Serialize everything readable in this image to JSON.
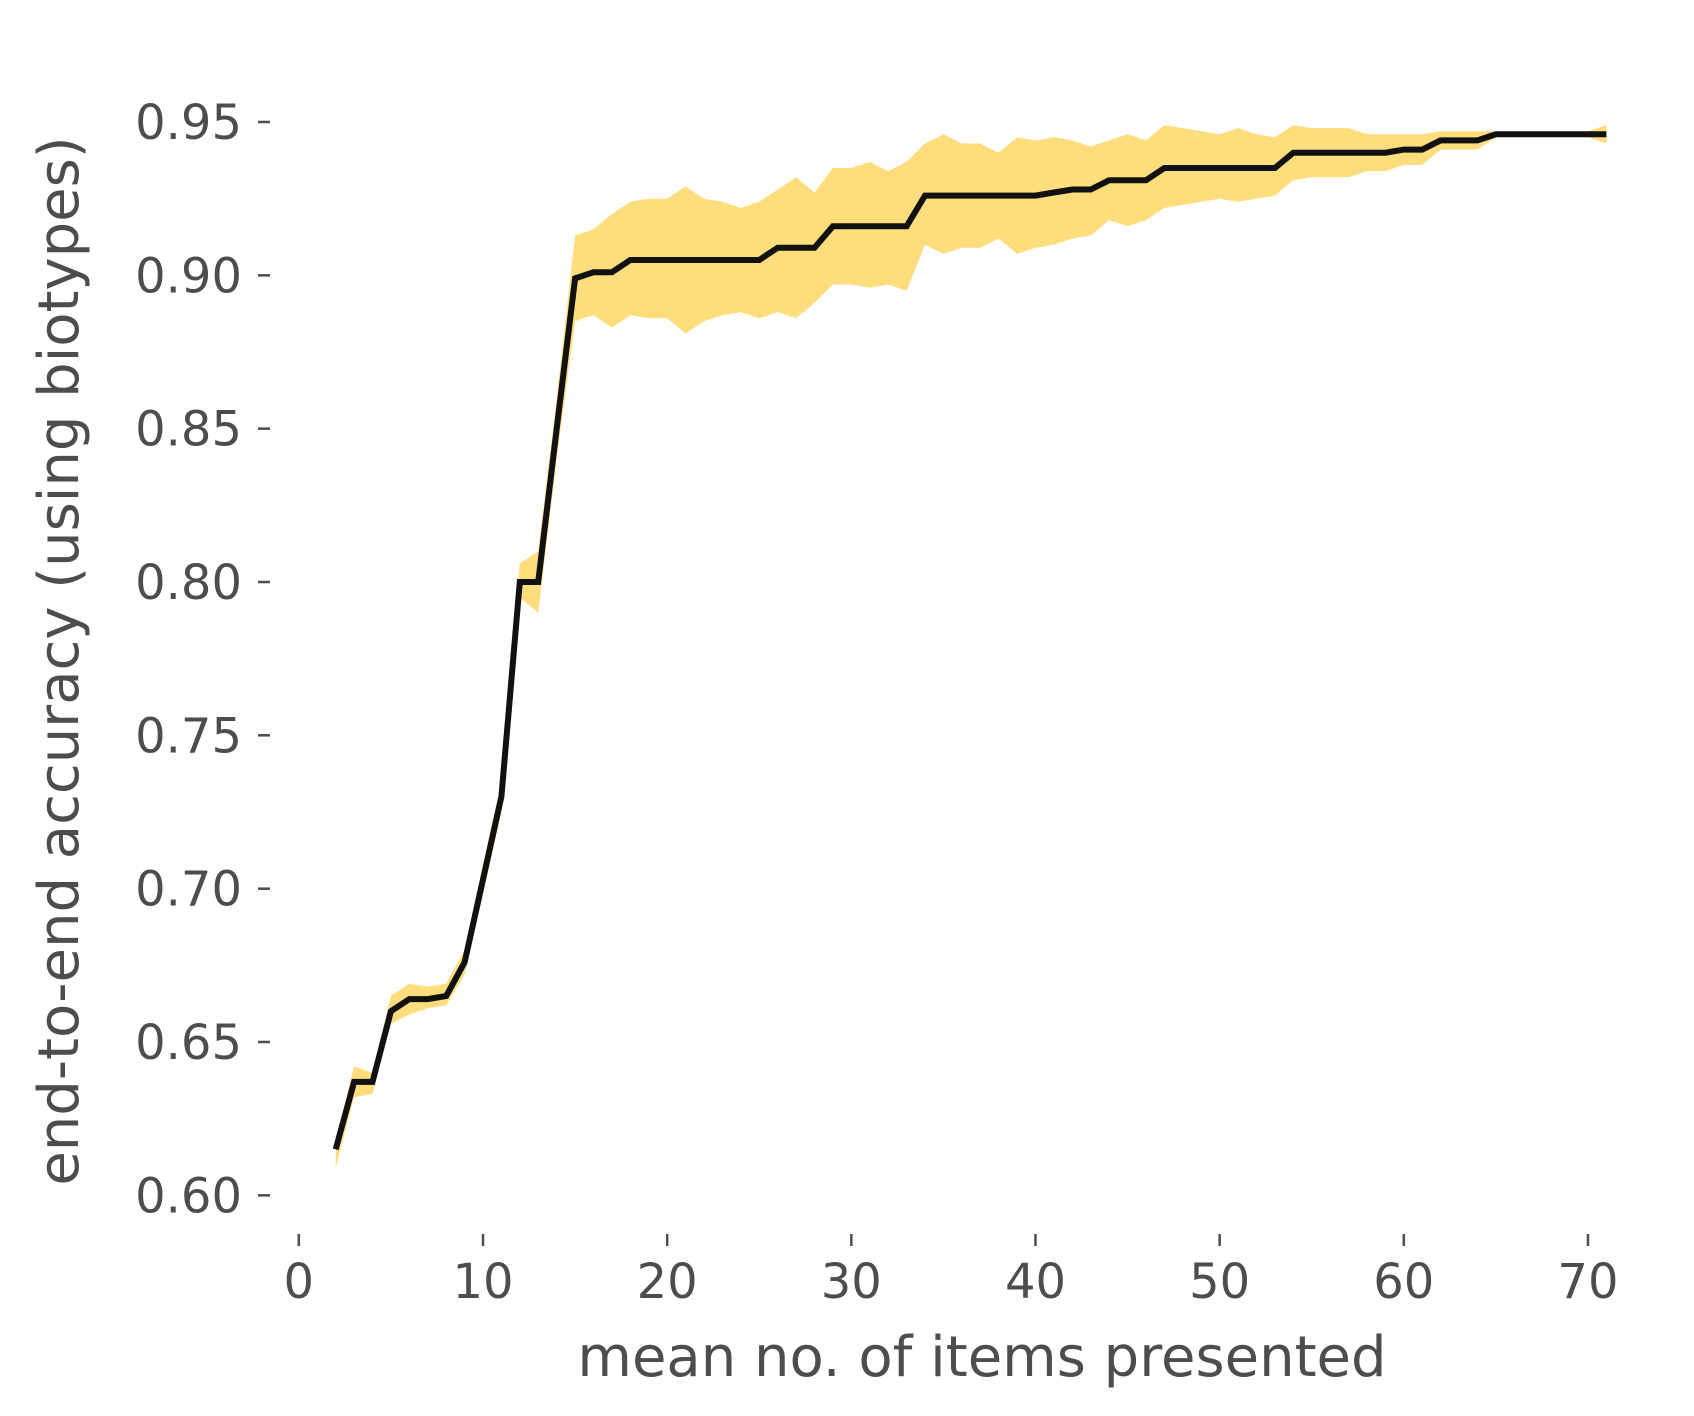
{
  "chart_data": {
    "type": "line",
    "title": "",
    "xlabel": "mean no. of items presented",
    "ylabel": "end-to-end accuracy (using biotypes)",
    "xlim": [
      -2,
      72.5
    ],
    "ylim": [
      0.59,
      0.98
    ],
    "xticks": [
      0,
      10,
      20,
      30,
      40,
      50,
      60,
      70
    ],
    "xtick_labels": [
      "0",
      "10",
      "20",
      "30",
      "40",
      "50",
      "60",
      "70"
    ],
    "yticks": [
      0.6,
      0.65,
      0.7,
      0.75,
      0.8,
      0.85,
      0.9,
      0.95
    ],
    "ytick_labels": [
      "0.60",
      "0.65",
      "0.70",
      "0.75",
      "0.80",
      "0.85",
      "0.90",
      "0.95"
    ],
    "grid": false,
    "colors": {
      "line": "#111111",
      "band": "#fedd7d",
      "text": "#4d4d4d",
      "tick": "#4d4d4d"
    },
    "series": [
      {
        "x": [
          2,
          3,
          4,
          5,
          6,
          7,
          8,
          9,
          10,
          11,
          12,
          13,
          14,
          15,
          16,
          17,
          18,
          19,
          20,
          21,
          22,
          23,
          24,
          25,
          26,
          27,
          28,
          29,
          30,
          31,
          32,
          33,
          34,
          35,
          36,
          37,
          38,
          39,
          40,
          41,
          42,
          43,
          44,
          45,
          46,
          47,
          48,
          49,
          50,
          51,
          52,
          53,
          54,
          55,
          56,
          57,
          58,
          59,
          60,
          61,
          62,
          63,
          64,
          65,
          66,
          67,
          68,
          69,
          70,
          71
        ],
        "y": [
          0.615,
          0.637,
          0.637,
          0.66,
          0.664,
          0.664,
          0.665,
          0.676,
          0.703,
          0.73,
          0.8,
          0.8,
          0.85,
          0.899,
          0.901,
          0.901,
          0.905,
          0.905,
          0.905,
          0.905,
          0.905,
          0.905,
          0.905,
          0.905,
          0.909,
          0.909,
          0.909,
          0.916,
          0.916,
          0.916,
          0.916,
          0.916,
          0.926,
          0.926,
          0.926,
          0.926,
          0.926,
          0.926,
          0.926,
          0.927,
          0.928,
          0.928,
          0.931,
          0.931,
          0.931,
          0.935,
          0.935,
          0.935,
          0.935,
          0.935,
          0.935,
          0.935,
          0.94,
          0.94,
          0.94,
          0.94,
          0.94,
          0.94,
          0.941,
          0.941,
          0.944,
          0.944,
          0.944,
          0.946,
          0.946,
          0.946,
          0.946,
          0.946,
          0.946,
          0.946
        ],
        "upper": [
          0.618,
          0.642,
          0.64,
          0.665,
          0.669,
          0.668,
          0.669,
          0.68,
          0.708,
          0.735,
          0.806,
          0.81,
          0.86,
          0.913,
          0.915,
          0.92,
          0.924,
          0.925,
          0.925,
          0.929,
          0.925,
          0.924,
          0.922,
          0.924,
          0.928,
          0.932,
          0.927,
          0.935,
          0.935,
          0.937,
          0.934,
          0.937,
          0.943,
          0.946,
          0.943,
          0.943,
          0.94,
          0.945,
          0.944,
          0.945,
          0.944,
          0.942,
          0.944,
          0.946,
          0.944,
          0.949,
          0.948,
          0.947,
          0.946,
          0.948,
          0.946,
          0.945,
          0.949,
          0.948,
          0.948,
          0.948,
          0.946,
          0.946,
          0.946,
          0.946,
          0.947,
          0.947,
          0.947,
          0.947,
          0.947,
          0.947,
          0.947,
          0.947,
          0.947,
          0.949
        ],
        "lower": [
          0.609,
          0.632,
          0.633,
          0.656,
          0.659,
          0.661,
          0.662,
          0.672,
          0.698,
          0.725,
          0.795,
          0.79,
          0.84,
          0.885,
          0.887,
          0.883,
          0.887,
          0.886,
          0.886,
          0.881,
          0.885,
          0.887,
          0.888,
          0.886,
          0.888,
          0.886,
          0.891,
          0.897,
          0.897,
          0.896,
          0.897,
          0.895,
          0.91,
          0.907,
          0.909,
          0.909,
          0.912,
          0.907,
          0.909,
          0.91,
          0.912,
          0.913,
          0.918,
          0.916,
          0.918,
          0.922,
          0.923,
          0.924,
          0.925,
          0.924,
          0.925,
          0.926,
          0.931,
          0.932,
          0.932,
          0.932,
          0.934,
          0.934,
          0.936,
          0.936,
          0.941,
          0.941,
          0.941,
          0.945,
          0.945,
          0.945,
          0.945,
          0.945,
          0.945,
          0.943
        ]
      }
    ]
  }
}
